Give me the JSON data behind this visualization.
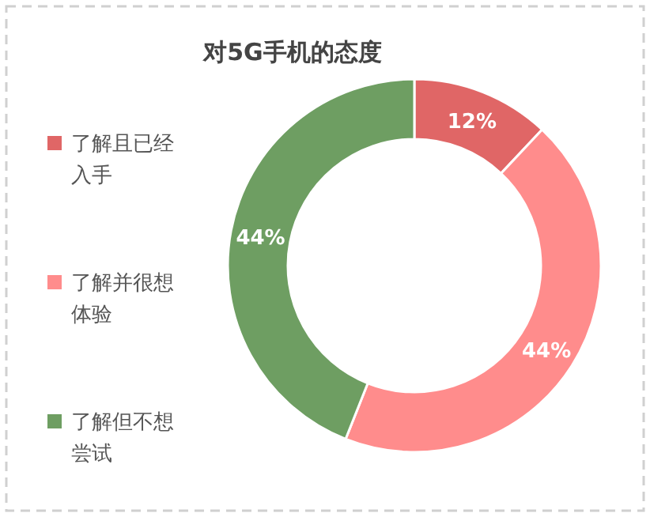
{
  "chart_data": {
    "type": "donut",
    "title": "对5G手机的态度",
    "categories": [
      "了解且已经入手",
      "了解并很想体验",
      "了解但不想尝试"
    ],
    "values": [
      12,
      44,
      44
    ],
    "colors": [
      "#e06666",
      "#ff8c8c",
      "#6e9e62"
    ],
    "value_labels": [
      "12%",
      "44%",
      "44%"
    ],
    "legend": "left"
  }
}
